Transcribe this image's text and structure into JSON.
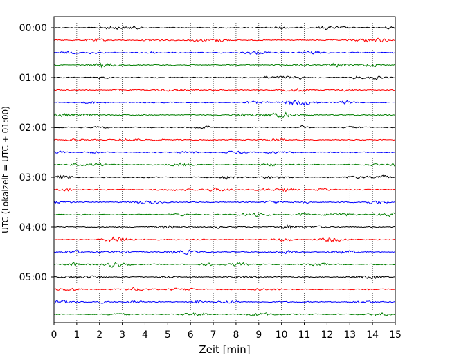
{
  "chart_data": {
    "type": "line",
    "title": "",
    "xlabel": "Zeit  [min]",
    "ylabel": "UTC (Lokalzeit = UTC + 01:00)",
    "xlim": [
      0,
      15
    ],
    "x_ticks": [
      "0",
      "1",
      "2",
      "3",
      "4",
      "5",
      "6",
      "7",
      "8",
      "9",
      "10",
      "11",
      "12",
      "13",
      "14",
      "15"
    ],
    "y_tick_labels": [
      "00:00",
      "01:00",
      "02:00",
      "03:00",
      "04:00",
      "05:00"
    ],
    "rows_per_hour": 4,
    "row_count": 24,
    "row_interval_min": 15,
    "grid": "vertical dotted at each minute",
    "color_cycle": [
      "#000000",
      "#ff0000",
      "#0000ff",
      "#007f00"
    ]
  }
}
